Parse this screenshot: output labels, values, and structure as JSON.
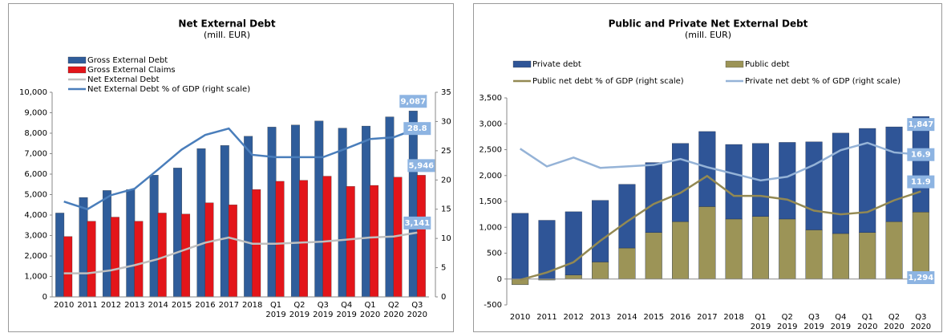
{
  "chart_data": [
    {
      "type": "bar",
      "title": "Net External Debt",
      "subtitle": "(mill. EUR)",
      "categories": [
        "2010",
        "2011",
        "2012",
        "2013",
        "2014",
        "2015",
        "2016",
        "2017",
        "2018",
        "Q1 2019",
        "Q2 2019",
        "Q3 2019",
        "Q4 2019",
        "Q1 2020",
        "Q2 2020",
        "Q3 2020"
      ],
      "series": [
        {
          "name": "Gross External Debt",
          "kind": "bar",
          "color": "#2f5d9b",
          "values": [
            4100,
            4860,
            5200,
            5250,
            5950,
            6300,
            7250,
            7400,
            7850,
            8300,
            8400,
            8600,
            8250,
            8350,
            8800,
            9087
          ],
          "value_labels": [
            null,
            null,
            null,
            null,
            null,
            null,
            null,
            null,
            null,
            null,
            null,
            null,
            null,
            null,
            null,
            "9,087"
          ]
        },
        {
          "name": "Gross External Claims",
          "kind": "bar",
          "color": "#e3151a",
          "values": [
            2950,
            3700,
            3900,
            3700,
            4100,
            4050,
            4600,
            4500,
            5250,
            5650,
            5700,
            5900,
            5400,
            5450,
            5850,
            5946
          ],
          "value_labels": [
            null,
            null,
            null,
            null,
            null,
            null,
            null,
            null,
            null,
            null,
            null,
            null,
            null,
            null,
            null,
            "5,946"
          ]
        },
        {
          "name": "Net External Debt",
          "kind": "line",
          "color": "#bfbfbf",
          "values": [
            1150,
            1150,
            1300,
            1550,
            1850,
            2250,
            2650,
            2900,
            2600,
            2600,
            2650,
            2700,
            2800,
            2900,
            2950,
            3141
          ],
          "value_labels": [
            null,
            null,
            null,
            null,
            null,
            null,
            null,
            null,
            null,
            null,
            null,
            null,
            null,
            null,
            null,
            "3,141"
          ]
        },
        {
          "name": "Net External Debt % of GDP (right scale)",
          "kind": "line",
          "axis": "y2",
          "color": "#4a7ebb",
          "values": [
            16.3,
            15.0,
            17.4,
            18.5,
            21.8,
            25.2,
            27.7,
            28.8,
            24.3,
            23.9,
            23.9,
            23.9,
            25.4,
            27.0,
            27.3,
            28.8
          ],
          "value_labels": [
            null,
            null,
            null,
            null,
            null,
            null,
            null,
            null,
            null,
            null,
            null,
            null,
            null,
            null,
            null,
            "28.8"
          ]
        }
      ],
      "ylim": [
        0,
        10000
      ],
      "yticks": [
        0,
        {
          "value": 1000,
          "label": "1,000"
        },
        {
          "value": 2000,
          "label": "2,000"
        },
        {
          "value": 3000,
          "label": "3,000"
        },
        {
          "value": 4000,
          "label": "4,000"
        },
        {
          "value": 5000,
          "label": "5,000"
        },
        {
          "value": 6000,
          "label": "6,000"
        },
        {
          "value": 7000,
          "label": "7,000"
        },
        {
          "value": 8000,
          "label": "8,000"
        },
        {
          "value": 9000,
          "label": "9,000"
        },
        {
          "value": 10000,
          "label": "10,000"
        }
      ],
      "y2lim": [
        0,
        35
      ],
      "y2ticks": [
        0,
        5,
        10,
        15,
        20,
        25,
        30,
        35
      ],
      "grid": false,
      "stacked": false
    },
    {
      "type": "bar",
      "title": "Public and Private Net External Debt",
      "subtitle": "(mill. EUR)",
      "categories": [
        "2010",
        "2011",
        "2012",
        "2013",
        "2014",
        "2015",
        "2016",
        "2017",
        "2018",
        "Q1 2019",
        "Q2 2019",
        "Q3 2019",
        "Q4 2019",
        "Q1 2020",
        "Q2 2020",
        "Q3 2020"
      ],
      "series": [
        {
          "name": "Private debt",
          "kind": "bar",
          "color": "#2f5597",
          "values": [
            1270,
            1135,
            1220,
            1190,
            1230,
            1350,
            1510,
            1450,
            1440,
            1410,
            1480,
            1700,
            1940,
            2010,
            1830,
            1847
          ],
          "value_labels": [
            null,
            null,
            null,
            null,
            null,
            null,
            null,
            null,
            null,
            null,
            null,
            null,
            null,
            null,
            null,
            "1,847"
          ]
        },
        {
          "name": "Public debt",
          "kind": "bar",
          "color": "#9c9457",
          "values": [
            -110,
            -20,
            80,
            330,
            600,
            900,
            1110,
            1400,
            1160,
            1210,
            1160,
            950,
            880,
            900,
            1110,
            1294
          ],
          "value_labels": [
            null,
            null,
            null,
            null,
            null,
            null,
            null,
            null,
            null,
            null,
            null,
            null,
            null,
            null,
            null,
            "1,294"
          ]
        },
        {
          "name": "Public net debt % of GDP (right scale)",
          "kind": "line",
          "axis": "y2",
          "color": "#938953",
          "values": [
            -0.1,
            0.9,
            2.3,
            5.2,
            7.8,
            10.2,
            11.7,
            14.0,
            11.3,
            11.3,
            10.8,
            9.3,
            8.8,
            9.1,
            10.7,
            11.9
          ],
          "value_labels": [
            null,
            null,
            null,
            null,
            null,
            null,
            null,
            null,
            null,
            null,
            null,
            null,
            null,
            null,
            null,
            "11.9"
          ]
        },
        {
          "name": "Private net debt % of GDP (right scale)",
          "kind": "line",
          "axis": "y2",
          "color": "#95b3d7",
          "values": [
            17.7,
            15.3,
            16.5,
            15.1,
            15.3,
            15.5,
            16.3,
            15.2,
            14.3,
            13.4,
            13.9,
            15.5,
            17.5,
            18.5,
            17.2,
            16.9
          ],
          "value_labels": [
            null,
            null,
            null,
            null,
            null,
            null,
            null,
            null,
            null,
            null,
            null,
            null,
            null,
            null,
            null,
            "16.9"
          ]
        }
      ],
      "ylim": [
        -500,
        3500
      ],
      "yticks": [
        -500,
        0,
        500,
        {
          "value": 1000,
          "label": "1,000"
        },
        {
          "value": 1500,
          "label": "1,500"
        },
        {
          "value": 2000,
          "label": "2,000"
        },
        {
          "value": 2500,
          "label": "2,500"
        },
        {
          "value": 3000,
          "label": "3,000"
        },
        {
          "value": 3500,
          "label": "3,500"
        }
      ],
      "y2lim": [
        -3.5,
        24.6
      ],
      "grid": false,
      "stacked": true
    }
  ]
}
